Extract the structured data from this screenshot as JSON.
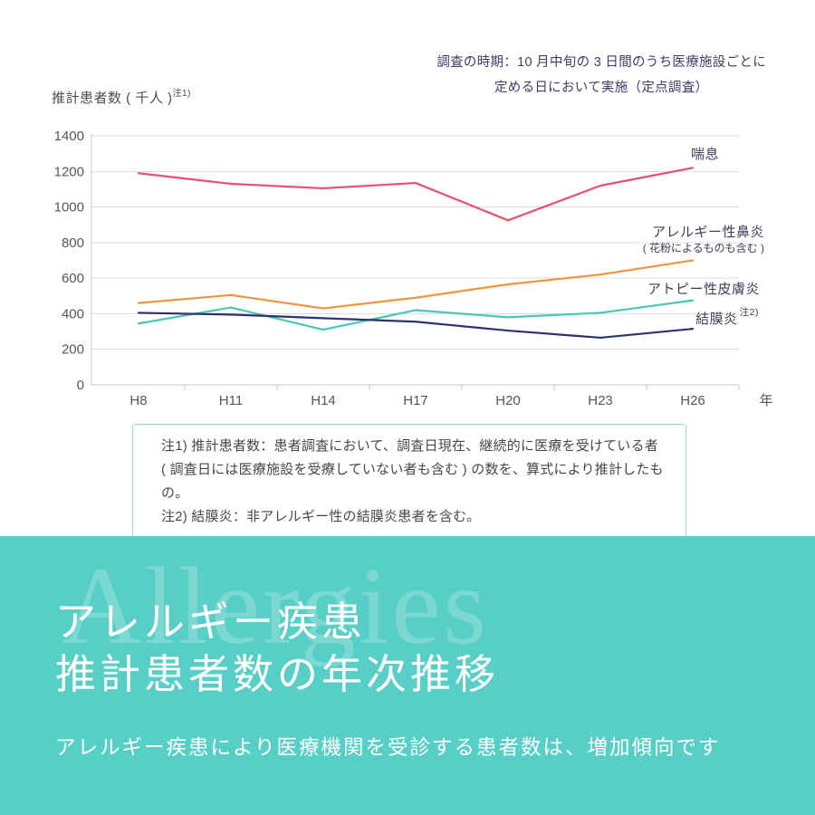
{
  "header": {
    "survey_note_line1": "調査の時期：10 月中旬の 3 日間のうち医療施設ごとに",
    "survey_note_line2": "定める日において実施（定点調査）"
  },
  "chart_data": {
    "type": "line",
    "ylabel": "推計患者数 ( 千人 )",
    "ylabel_note": "注1)",
    "xlabel": "年",
    "unit": "千人",
    "categories": [
      "H8",
      "H11",
      "H14",
      "H17",
      "H20",
      "H23",
      "H26"
    ],
    "ylim": [
      0,
      1400
    ],
    "y_ticks": [
      0,
      200,
      400,
      600,
      800,
      1000,
      1200,
      1400
    ],
    "grid": true,
    "legend_position": "right-inline",
    "series": [
      {
        "slug": "asthma",
        "label": "喘息",
        "label_sub": "",
        "label_note": "",
        "color": "#e8506e",
        "values": [
          1190,
          1130,
          1105,
          1135,
          925,
          1120,
          1220
        ]
      },
      {
        "slug": "allergic-rhinitis",
        "label": "アレルギー性鼻炎",
        "label_sub": "( 花粉によるものも含む )",
        "label_note": "",
        "color": "#f0943d",
        "values": [
          460,
          505,
          430,
          490,
          565,
          620,
          700
        ]
      },
      {
        "slug": "atopic-dermatitis",
        "label": "アトピー性皮膚炎",
        "label_sub": "",
        "label_note": "",
        "color": "#49c8b6",
        "values": [
          345,
          435,
          310,
          420,
          380,
          405,
          475
        ]
      },
      {
        "slug": "conjunctivitis",
        "label": "結膜炎",
        "label_sub": "",
        "label_note": "注2)",
        "color": "#2d3170",
        "values": [
          405,
          395,
          375,
          355,
          305,
          265,
          315
        ]
      }
    ]
  },
  "notes": {
    "line1": "注1) 推計患者数：患者調査において、調査日現在、継続的に医療を受けている者",
    "line2": "( 調査日には医療施設を受療していない者も含む ) の数を、算式により推計したもの。",
    "line3": "注2) 結膜炎：非アレルギー性の結膜炎患者を含む。"
  },
  "footer": {
    "watermark": "Allergies",
    "title_line1": "アレルギー疾患",
    "title_line2": "推計患者数の年次推移",
    "subtitle": "アレルギー疾患により医療機関を受診する患者数は、増加傾向です",
    "colors": {
      "background": "#58cfc6",
      "text": "#ffffff"
    }
  }
}
